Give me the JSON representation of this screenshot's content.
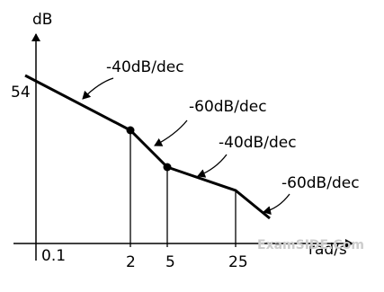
{
  "axis_labels": {
    "y": "dB",
    "x": "rad/s"
  },
  "y_marks": [
    "54"
  ],
  "x_marks": [
    "0.1",
    "2",
    "5",
    "25"
  ],
  "slopes": [
    "-40dB/dec",
    "-60dB/dec",
    "-40dB/dec",
    "-60dB/dec"
  ],
  "watermark": "ExamSIDE.Com"
}
